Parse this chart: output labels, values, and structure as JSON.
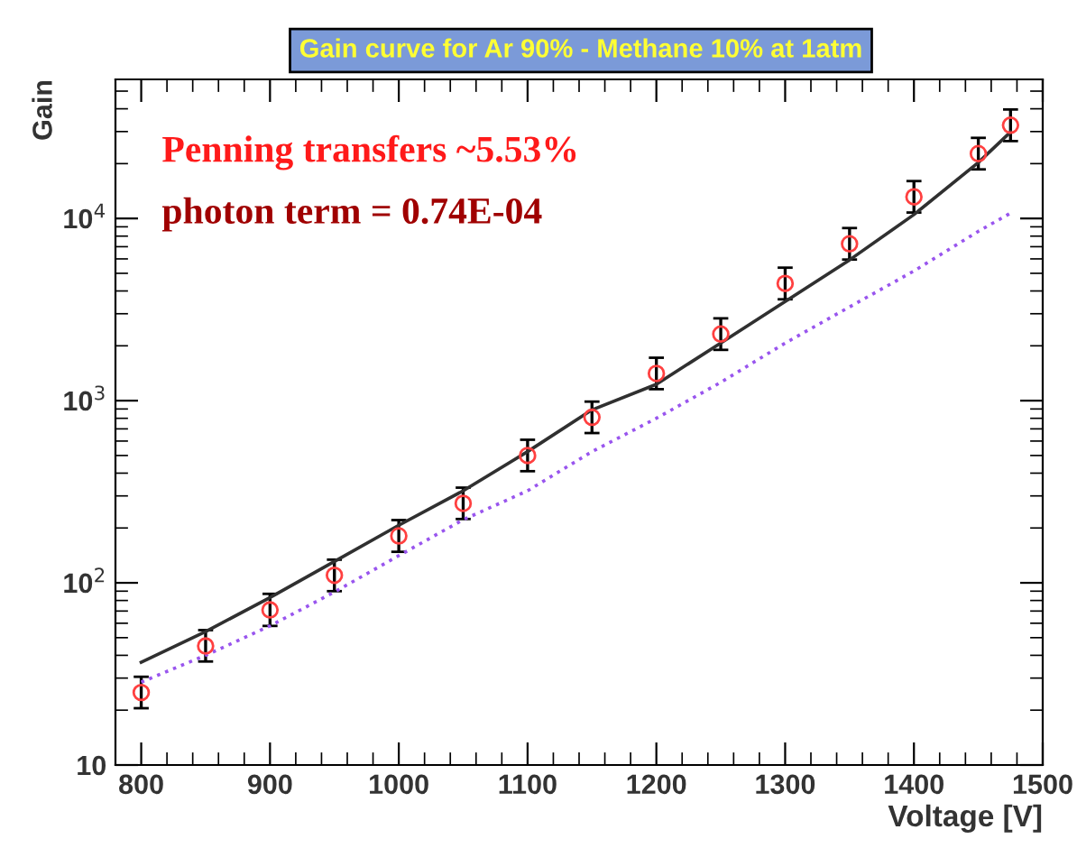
{
  "chart_data": {
    "type": "line",
    "title": "Gain curve for Ar 90% - Methane 10% at 1atm",
    "xlabel": "Voltage [V]",
    "ylabel": "Gain",
    "annotations": [
      "Penning transfers ~5.53%",
      "photon term = 0.74E-04"
    ],
    "log": "y",
    "xlim": [
      780,
      1500
    ],
    "ylim": [
      10,
      58000
    ],
    "xticks": [
      800,
      900,
      1000,
      1100,
      1200,
      1300,
      1400,
      1500
    ],
    "yticks": [
      10,
      {
        "value": 100,
        "label": "10$^{2}$"
      },
      {
        "value": 1000,
        "label": "10$^{3}$"
      },
      {
        "value": 10000,
        "label": "10$^{4}$"
      }
    ],
    "grid": false,
    "series": [
      {
        "type": "scatter",
        "marker": "circle",
        "color": "#ff4040",
        "x": [
          800,
          850,
          900,
          950,
          1000,
          1050,
          1100,
          1150,
          1200,
          1250,
          1300,
          1350,
          1400,
          1450,
          1475
        ],
        "values": [
          25,
          45,
          71,
          110,
          181,
          273,
          500,
          810,
          1410,
          2320,
          4400,
          7260,
          13150,
          22700,
          32500
        ],
        "errors": [
          [
            20.5,
            30.5
          ],
          [
            37,
            55
          ],
          [
            58,
            87
          ],
          [
            90,
            134
          ],
          [
            148,
            221
          ],
          [
            224,
            333
          ],
          [
            410,
            610
          ],
          [
            664,
            988
          ],
          [
            1156,
            1720
          ],
          [
            1900,
            2830
          ],
          [
            3600,
            5370
          ],
          [
            5950,
            8860
          ],
          [
            10780,
            16040
          ],
          [
            18600,
            27700
          ],
          [
            26600,
            39650
          ]
        ]
      },
      {
        "line_style": "solid",
        "color": "#303030",
        "x": [
          800,
          850,
          900,
          950,
          1000,
          1050,
          1100,
          1150,
          1200,
          1250,
          1300,
          1350,
          1400,
          1450,
          1475
        ],
        "values": [
          36.6,
          54,
          83,
          131,
          207,
          320,
          525,
          890,
          1230,
          2070,
          3500,
          5920,
          10500,
          20300,
          29800
        ]
      },
      {
        "line_style": "dotted",
        "color": "#9955ee",
        "x": [
          800,
          850,
          900,
          950,
          1000,
          1050,
          1100,
          1150,
          1200,
          1250,
          1300,
          1350,
          1400,
          1450,
          1475
        ],
        "values": [
          28.5,
          40,
          58,
          89,
          141,
          222,
          320,
          525,
          800,
          1260,
          2070,
          3270,
          5150,
          8500,
          10700
        ]
      }
    ]
  }
}
